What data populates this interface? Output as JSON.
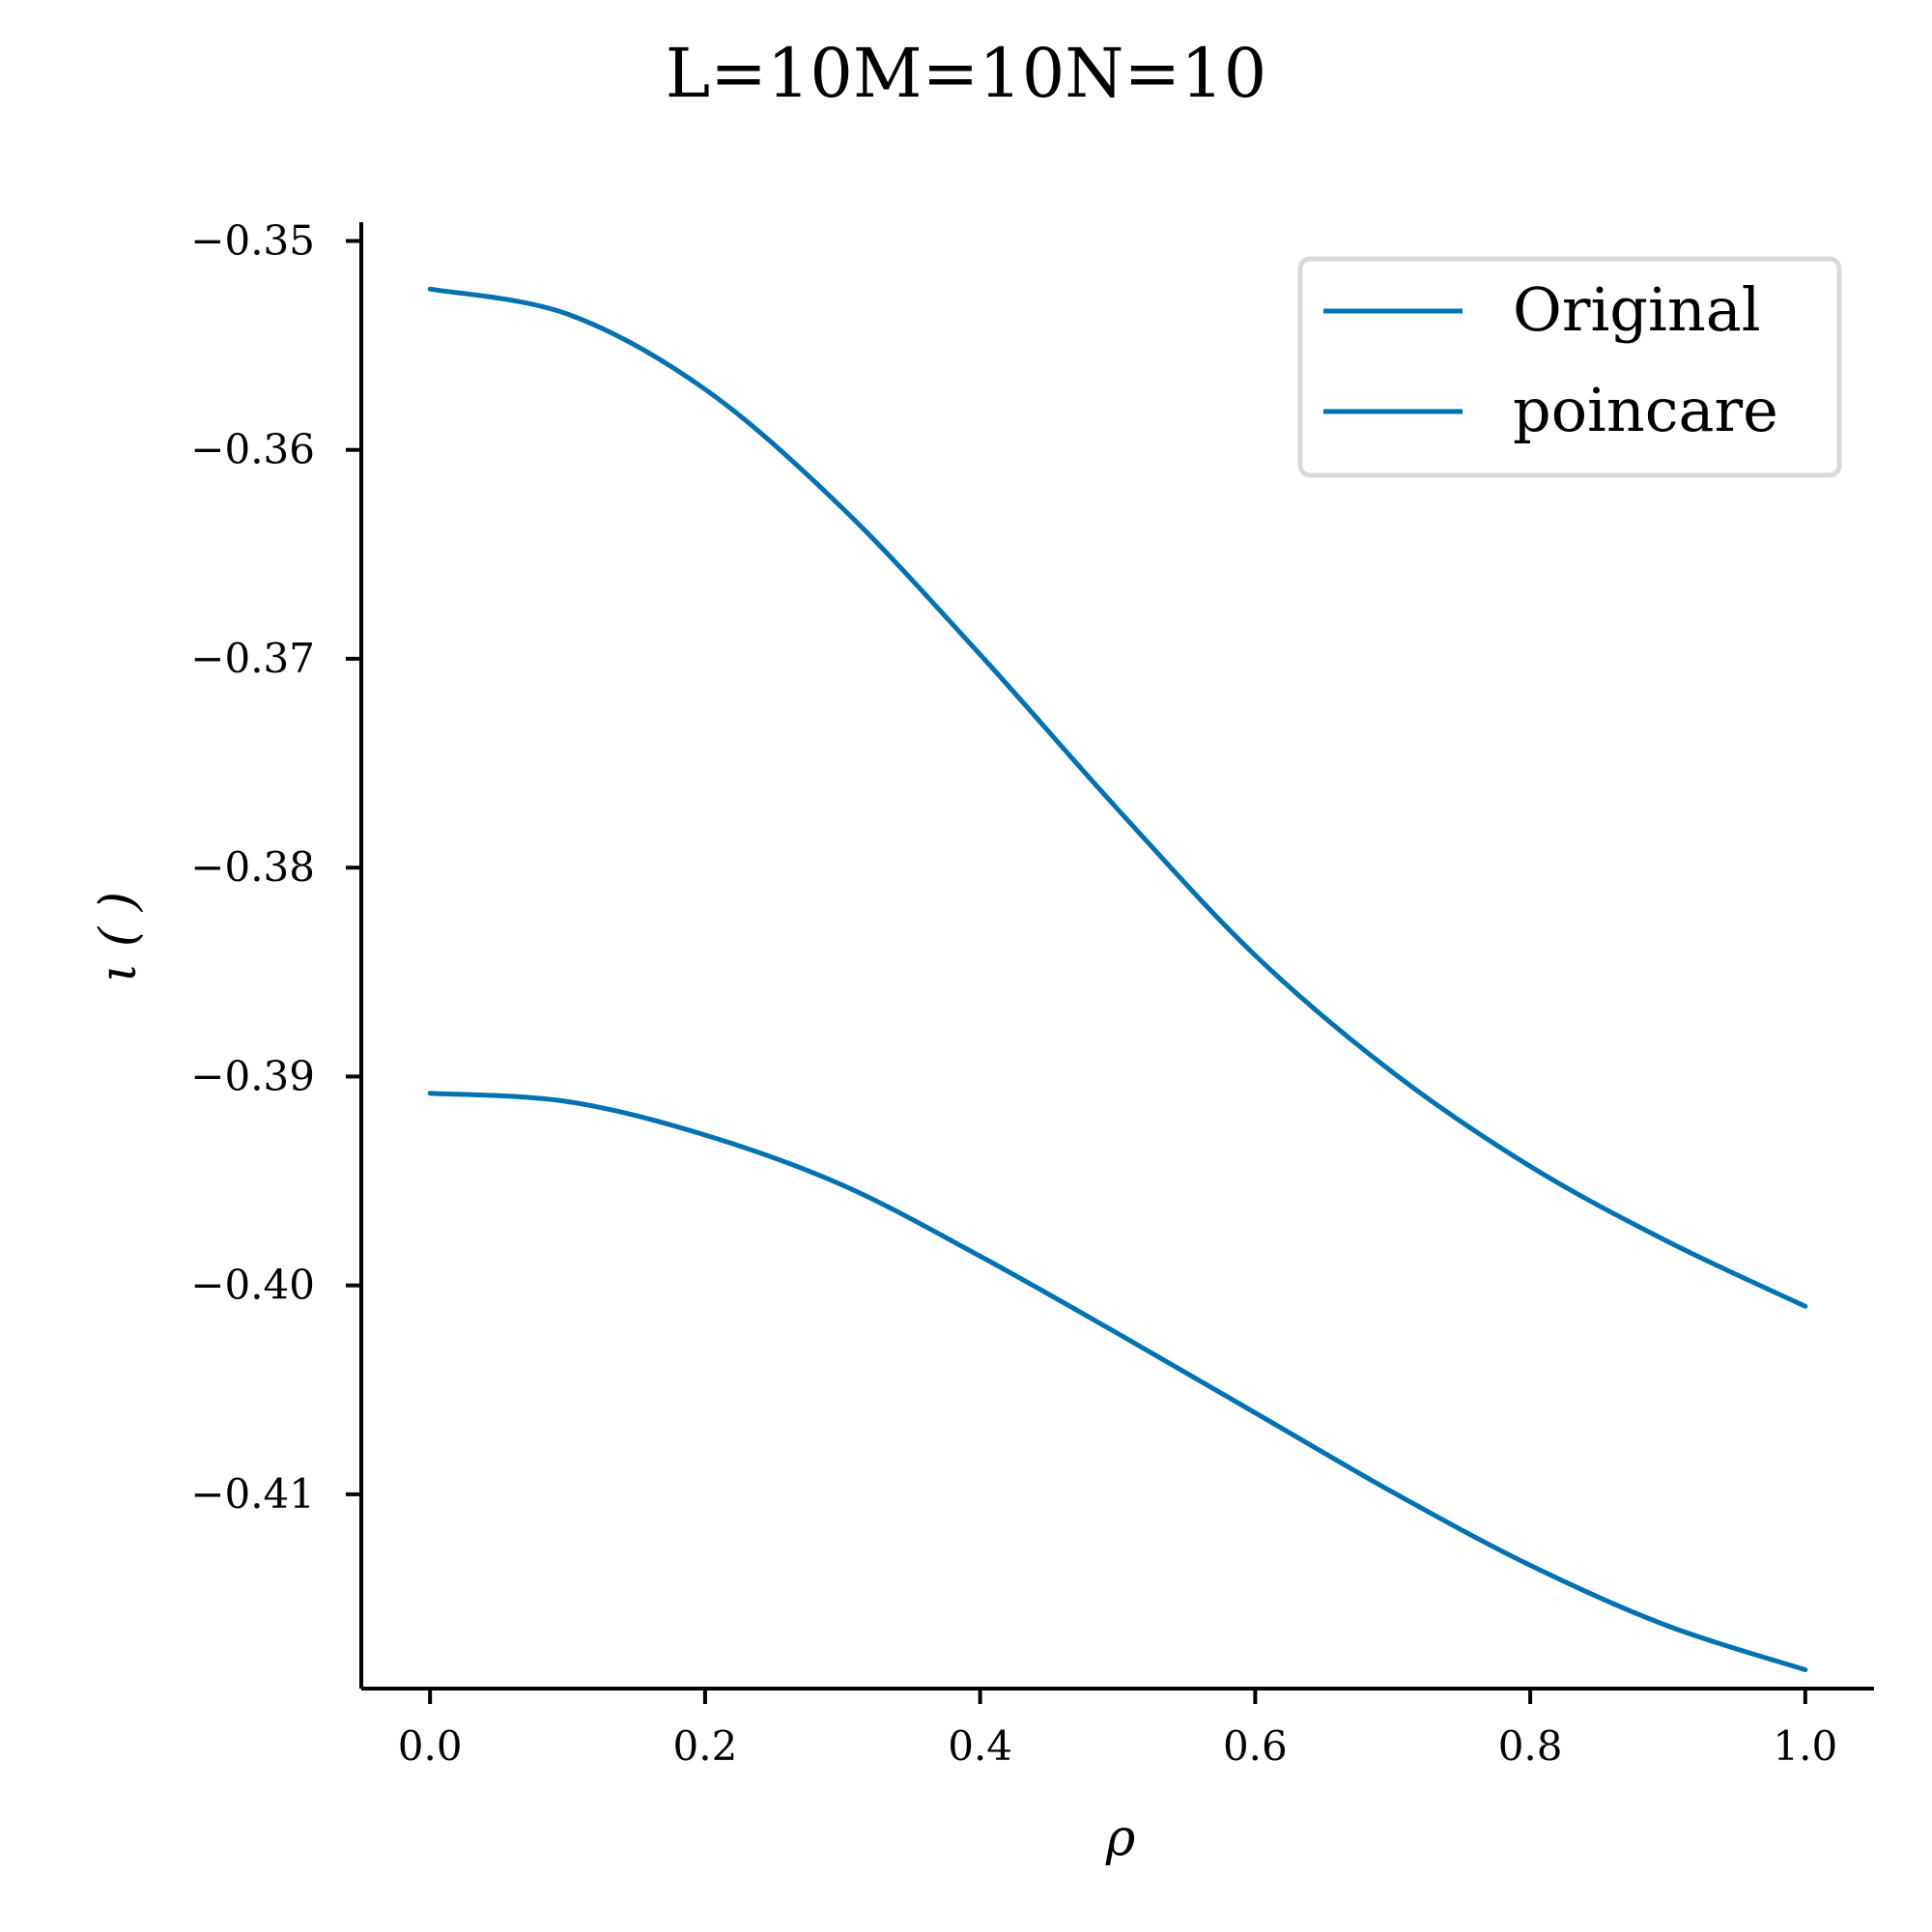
{
  "chart_data": {
    "type": "line",
    "title": "L=10M=10N=10",
    "xlabel": "ρ",
    "ylabel": "ι ( )",
    "xlim": [
      -0.05,
      1.05
    ],
    "ylim": [
      -0.4193,
      -0.3491
    ],
    "xticks": [
      0.0,
      0.2,
      0.4,
      0.6,
      0.8,
      1.0
    ],
    "xtick_labels": [
      "0.0",
      "0.2",
      "0.4",
      "0.6",
      "0.8",
      "1.0"
    ],
    "yticks": [
      -0.35,
      -0.36,
      -0.37,
      -0.38,
      -0.39,
      -0.4,
      -0.41
    ],
    "ytick_labels": [
      "−0.35",
      "−0.36",
      "−0.37",
      "−0.38",
      "−0.39",
      "−0.40",
      "−0.41"
    ],
    "grid": false,
    "legend_position": "top-right",
    "line_color": "#0072b2",
    "series": [
      {
        "name": "Original",
        "x": [
          0.0,
          0.1,
          0.2,
          0.3,
          0.4,
          0.5,
          0.6,
          0.7,
          0.8,
          0.9,
          1.0
        ],
        "y": [
          -0.3523,
          -0.3535,
          -0.3571,
          -0.3628,
          -0.3698,
          -0.3772,
          -0.3842,
          -0.3898,
          -0.3943,
          -0.3979,
          -0.401
        ]
      },
      {
        "name": "poincare",
        "x": [
          0.0,
          0.1,
          0.2,
          0.3,
          0.4,
          0.5,
          0.6,
          0.7,
          0.8,
          0.9,
          1.0
        ],
        "y": [
          -0.3908,
          -0.3912,
          -0.3928,
          -0.3952,
          -0.3986,
          -0.4023,
          -0.4061,
          -0.4099,
          -0.4134,
          -0.4163,
          -0.4184
        ]
      }
    ]
  }
}
